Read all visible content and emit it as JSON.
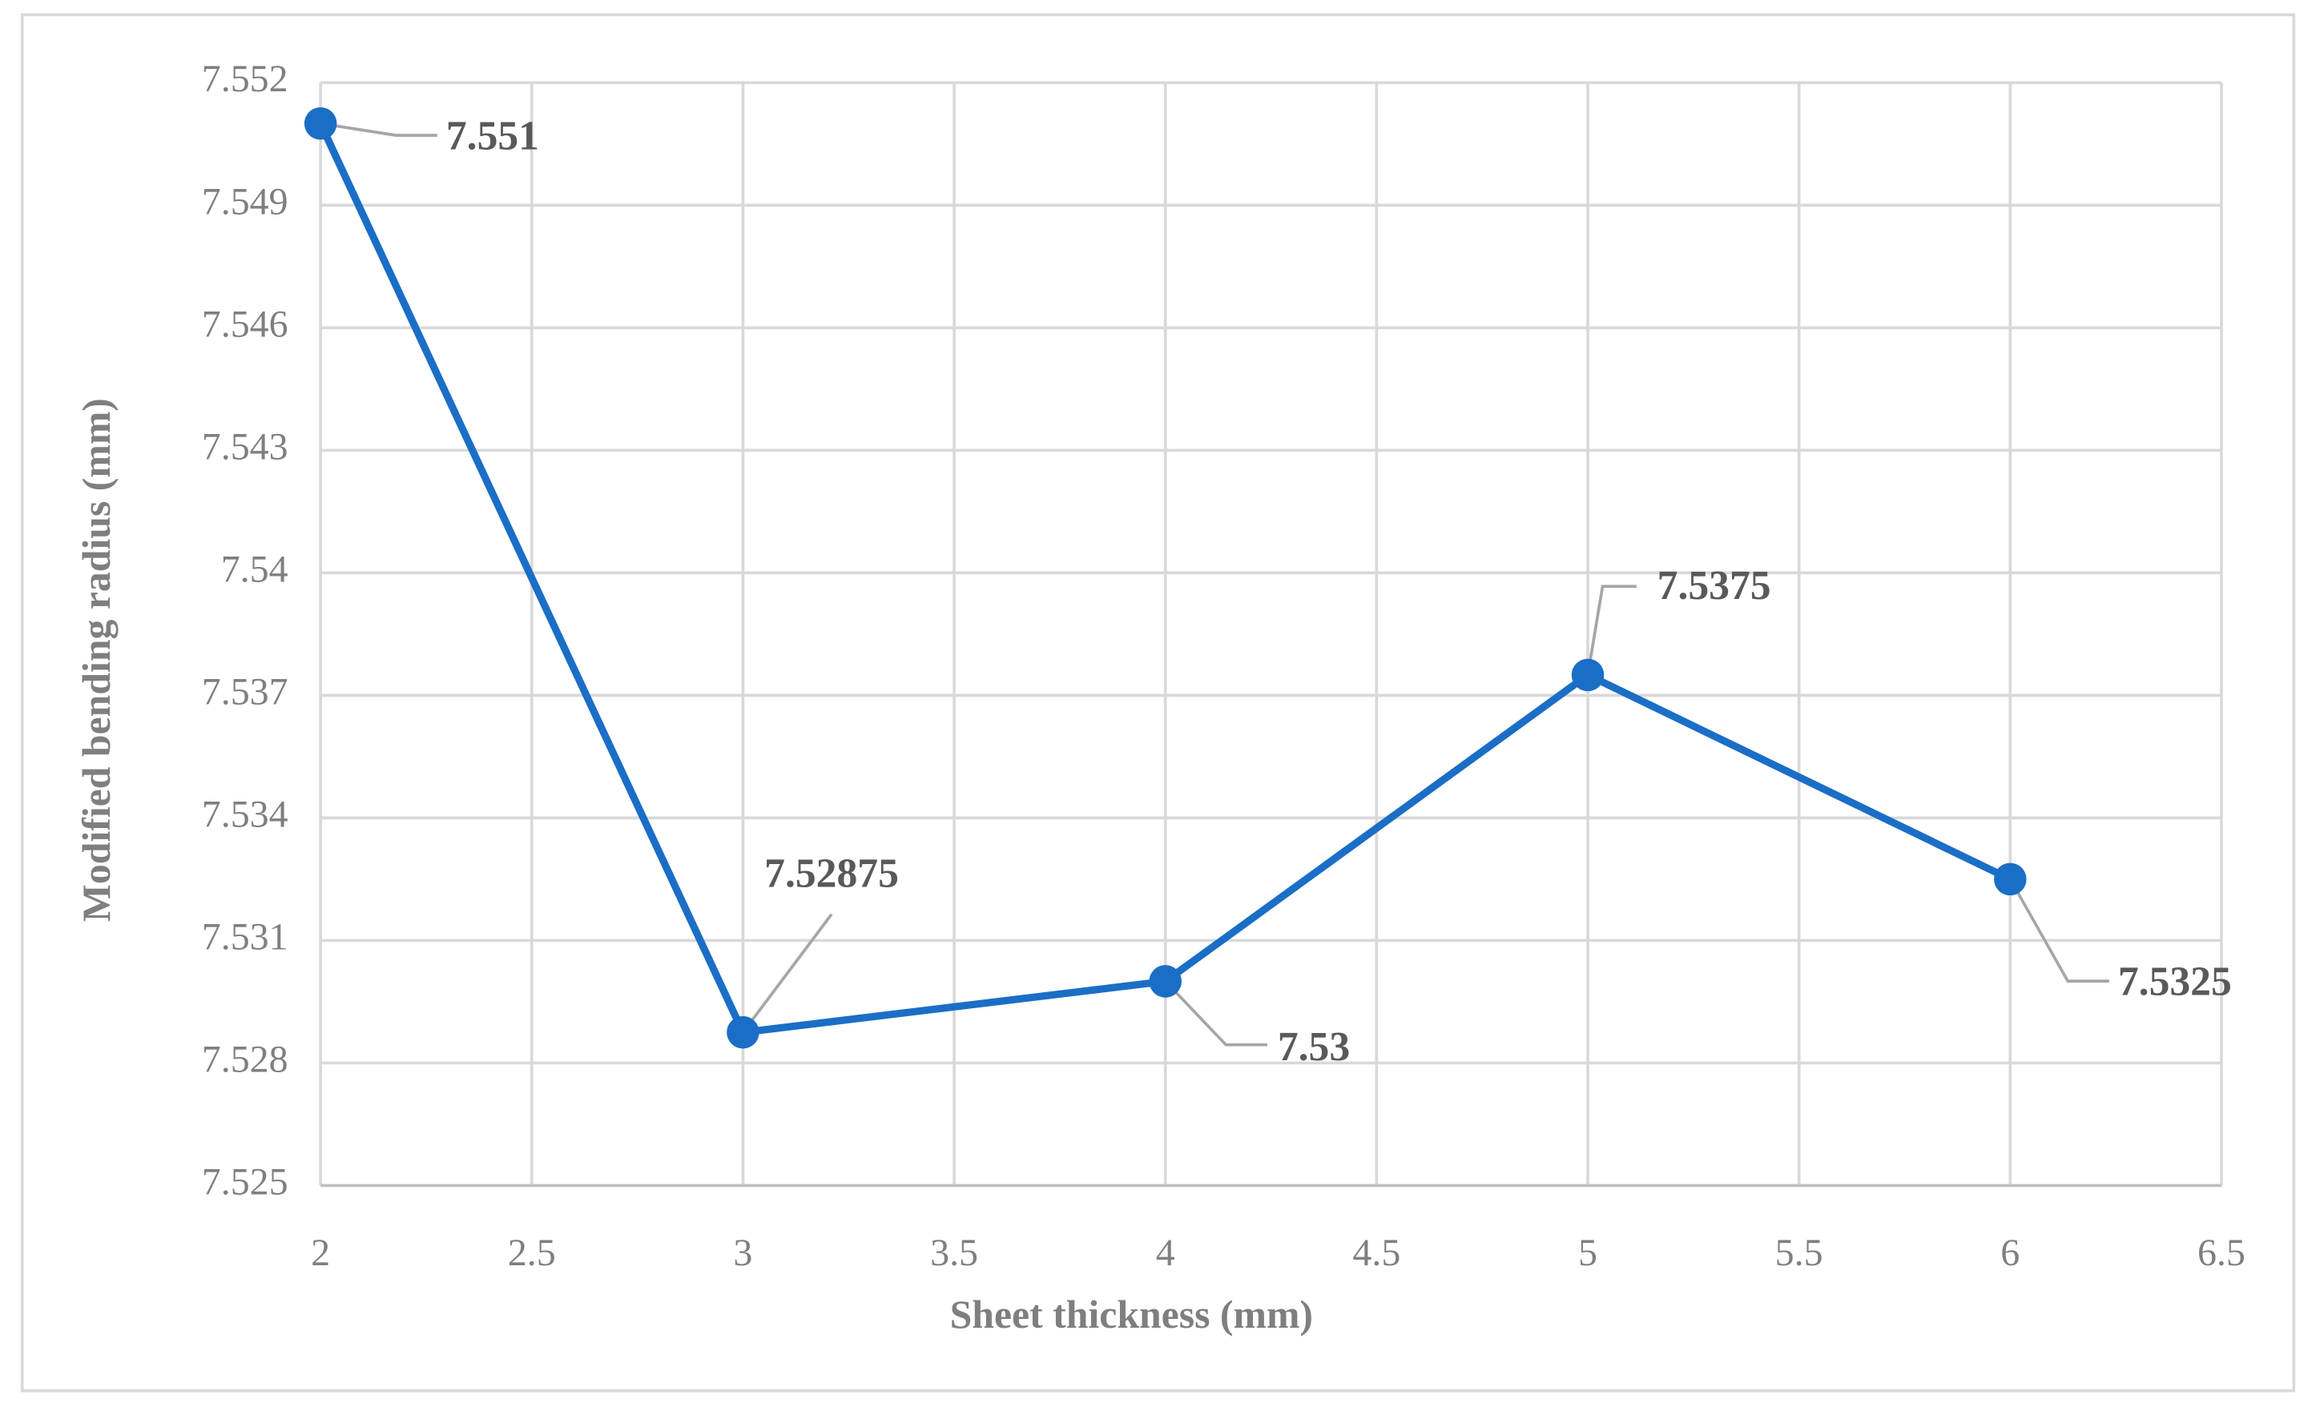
{
  "chart_data": {
    "type": "line",
    "x_label": "Sheet thickness (mm)",
    "y_label": "Modified bending radius (mm)",
    "x": [
      2,
      3,
      4,
      5,
      6
    ],
    "series": [
      {
        "color": "#1b6ec6",
        "values": [
          7.551,
          7.52875,
          7.53,
          7.5375,
          7.5325
        ]
      }
    ],
    "xlim": [
      2,
      6.5
    ],
    "xticks": [
      2,
      2.5,
      3,
      3.5,
      4,
      4.5,
      5,
      5.5,
      6,
      6.5
    ],
    "ylim": [
      7.525,
      7.552
    ],
    "yticks": [
      7.525,
      7.528,
      7.531,
      7.534,
      7.537,
      7.54,
      7.543,
      7.546,
      7.549,
      7.552
    ],
    "grid": true
  }
}
